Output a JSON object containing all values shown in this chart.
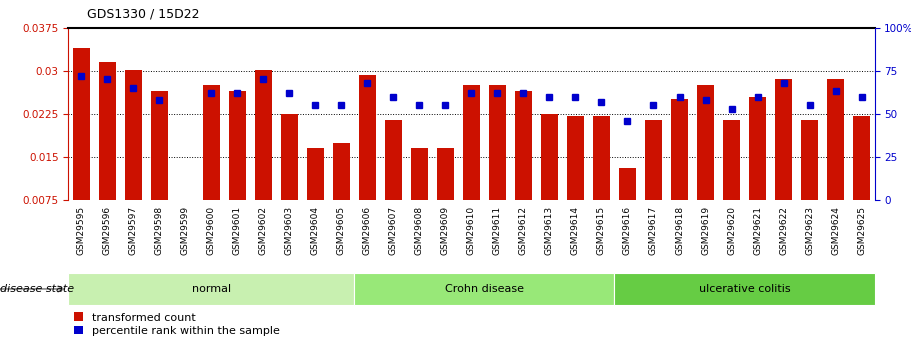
{
  "title": "GDS1330 / 15D22",
  "samples": [
    "GSM29595",
    "GSM29596",
    "GSM29597",
    "GSM29598",
    "GSM29599",
    "GSM29600",
    "GSM29601",
    "GSM29602",
    "GSM29603",
    "GSM29604",
    "GSM29605",
    "GSM29606",
    "GSM29607",
    "GSM29608",
    "GSM29609",
    "GSM29610",
    "GSM29611",
    "GSM29612",
    "GSM29613",
    "GSM29614",
    "GSM29615",
    "GSM29616",
    "GSM29617",
    "GSM29618",
    "GSM29619",
    "GSM29620",
    "GSM29621",
    "GSM29622",
    "GSM29623",
    "GSM29624",
    "GSM29625"
  ],
  "transformed_count": [
    0.034,
    0.0315,
    0.0302,
    0.0265,
    0.0,
    0.0275,
    0.0265,
    0.0302,
    0.0225,
    0.0165,
    0.0175,
    0.0292,
    0.0215,
    0.0165,
    0.0165,
    0.0275,
    0.0275,
    0.0265,
    0.0225,
    0.0222,
    0.0222,
    0.013,
    0.0215,
    0.025,
    0.0275,
    0.0215,
    0.0255,
    0.0285,
    0.0215,
    0.0285,
    0.0222
  ],
  "percentile_rank": [
    72,
    70,
    65,
    58,
    0,
    62,
    62,
    70,
    62,
    55,
    55,
    68,
    60,
    55,
    55,
    62,
    62,
    62,
    60,
    60,
    57,
    46,
    55,
    60,
    58,
    53,
    60,
    68,
    55,
    63,
    60
  ],
  "groups": [
    {
      "label": "normal",
      "start": 0,
      "end": 11,
      "color": "#c8f0b0"
    },
    {
      "label": "Crohn disease",
      "start": 11,
      "end": 21,
      "color": "#98e878"
    },
    {
      "label": "ulcerative colitis",
      "start": 21,
      "end": 31,
      "color": "#66cc44"
    }
  ],
  "ymin": 0.0075,
  "ymax": 0.0375,
  "yticks_left": [
    0.0075,
    0.015,
    0.0225,
    0.03,
    0.0375
  ],
  "yticks_right": [
    0,
    25,
    50,
    75,
    100
  ],
  "bar_color": "#cc1100",
  "dot_color": "#0000cc",
  "bg_color": "#ffffff"
}
